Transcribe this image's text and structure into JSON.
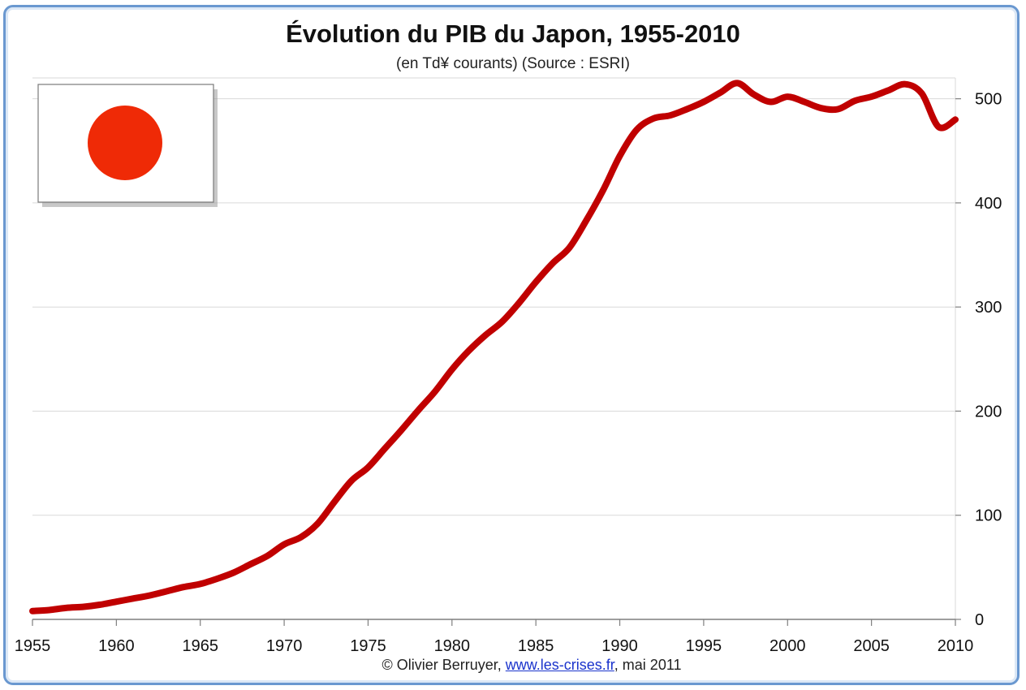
{
  "title": "Évolution du PIB du Japon, 1955-2010",
  "subtitle": "(en Td¥ courants) (Source : ESRI)",
  "footer": {
    "prefix": "© Olivier Berruyer,",
    "link_text": "www.les-crises.fr",
    "suffix": ",  mai 2011"
  },
  "flag": {
    "field_color": "#ffffff",
    "disc_color": "#ef2a06"
  },
  "colors": {
    "line": "#c00000",
    "grid": "#d9d9d9",
    "frame": "#6a98d0"
  },
  "chart_data": {
    "type": "line",
    "title": "Évolution du PIB du Japon, 1955-2010",
    "subtitle": "(en Td¥ courants) (Source : ESRI)",
    "xlim": [
      1955,
      2010
    ],
    "ylim": [
      0,
      520
    ],
    "xticks": [
      1955,
      1960,
      1965,
      1970,
      1975,
      1980,
      1985,
      1990,
      1995,
      2000,
      2005,
      2010
    ],
    "yticks": [
      0,
      100,
      200,
      300,
      400,
      500
    ],
    "yaxis_side": "right",
    "grid": "horizontal",
    "series": [
      {
        "color": "#c00000",
        "x": [
          1955,
          1956,
          1957,
          1958,
          1959,
          1960,
          1961,
          1962,
          1963,
          1964,
          1965,
          1966,
          1967,
          1968,
          1969,
          1970,
          1971,
          1972,
          1973,
          1974,
          1975,
          1976,
          1977,
          1978,
          1979,
          1980,
          1981,
          1982,
          1983,
          1984,
          1985,
          1986,
          1987,
          1988,
          1989,
          1990,
          1991,
          1992,
          1993,
          1994,
          1995,
          1996,
          1997,
          1998,
          1999,
          2000,
          2001,
          2002,
          2003,
          2004,
          2005,
          2006,
          2007,
          2008,
          2009,
          2010
        ],
        "values": [
          8,
          9,
          11,
          12,
          14,
          17,
          20,
          23,
          27,
          31,
          34,
          39,
          45,
          53,
          61,
          72,
          79,
          92,
          113,
          133,
          146,
          164,
          182,
          201,
          219,
          240,
          258,
          273,
          286,
          304,
          324,
          342,
          357,
          383,
          412,
          445,
          470,
          481,
          484,
          490,
          497,
          506,
          515,
          504,
          497,
          502,
          497,
          491,
          490,
          498,
          502,
          508,
          514,
          505,
          473,
          480
        ]
      }
    ]
  }
}
